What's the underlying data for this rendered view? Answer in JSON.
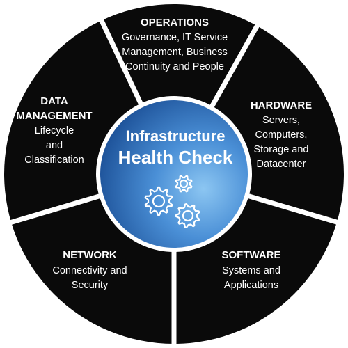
{
  "colors": {
    "segment_fill": "#0a0a0a",
    "divider": "#ffffff",
    "center_light": "#6fb4ea",
    "center_dark": "#1e5fa8",
    "text": "#ffffff"
  },
  "center": {
    "title_line1": "Infrastructure",
    "title_line2": "Health Check",
    "icon": "gears-icon"
  },
  "segments": [
    {
      "id": "operations",
      "title_lines": [
        "OPERATIONS"
      ],
      "body_lines": [
        "Governance, IT Service",
        "Management, Business",
        "Continuity and People"
      ]
    },
    {
      "id": "hardware",
      "title_lines": [
        "HARDWARE"
      ],
      "body_lines": [
        "Servers,",
        "Computers,",
        "Storage and",
        "Datacenter"
      ]
    },
    {
      "id": "software",
      "title_lines": [
        "SOFTWARE"
      ],
      "body_lines": [
        "Systems and",
        "Applications"
      ]
    },
    {
      "id": "network",
      "title_lines": [
        "NETWORK"
      ],
      "body_lines": [
        "Connectivity and",
        "Security"
      ]
    },
    {
      "id": "data-management",
      "title_lines": [
        "DATA",
        "MANAGEMENT"
      ],
      "body_lines": [
        "Lifecycle",
        "and",
        "Classification"
      ]
    }
  ]
}
